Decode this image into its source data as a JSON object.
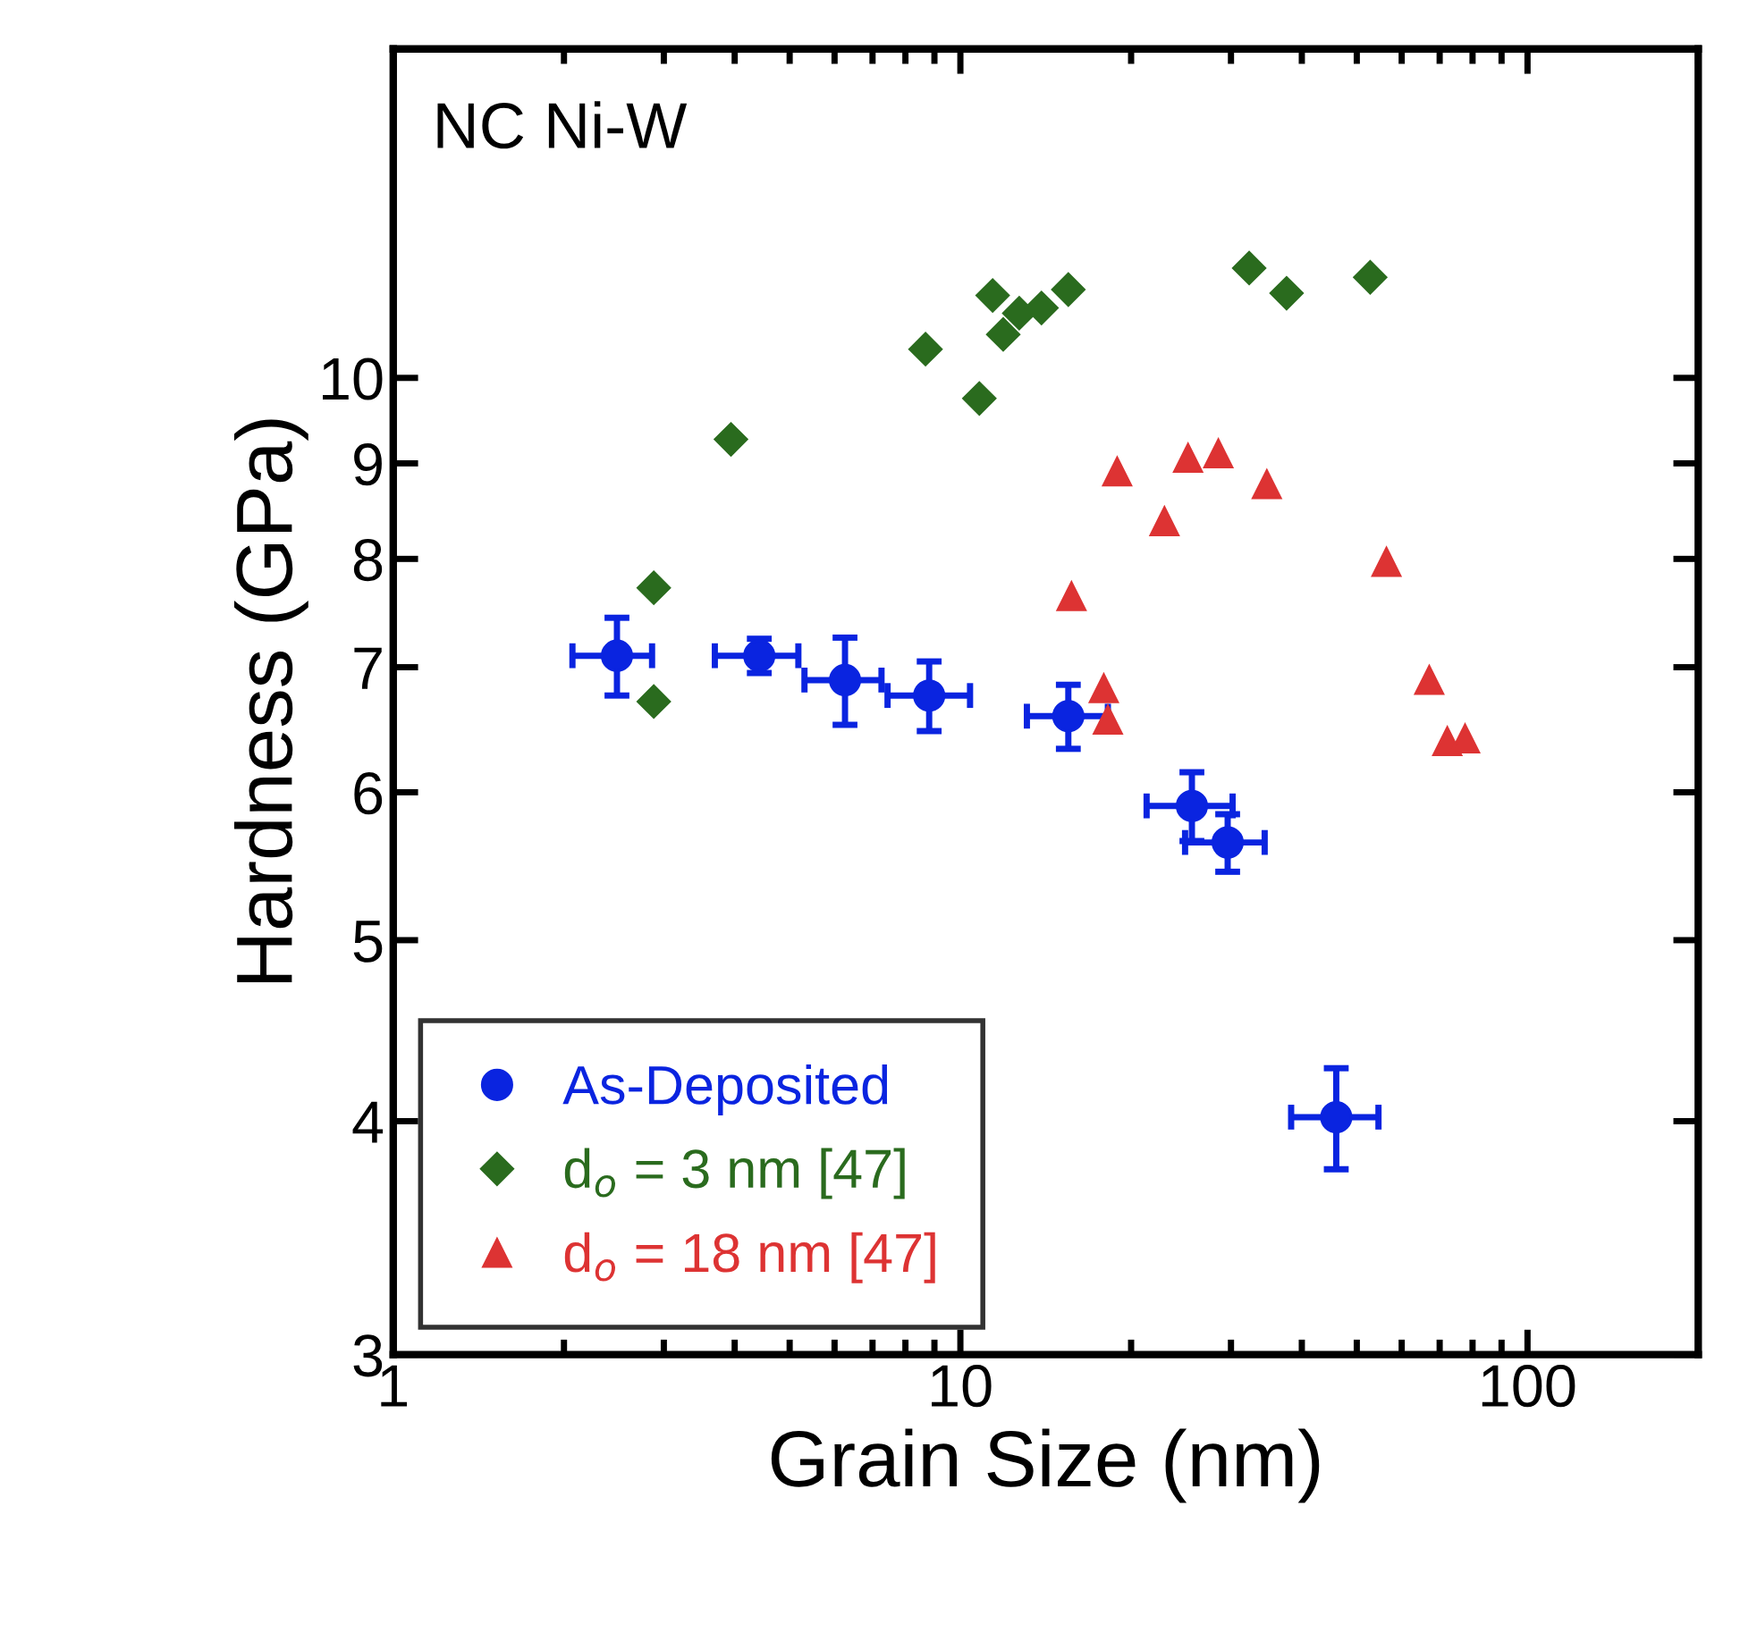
{
  "chart_data": {
    "type": "scatter",
    "xlabel": "Grain Size (nm)",
    "ylabel": "Hardness (GPa)",
    "annotations": [
      "NC Ni-W"
    ],
    "log": "xy",
    "xlim": [
      1,
      200
    ],
    "xticks": [
      1,
      10,
      100
    ],
    "ylim": [
      3,
      15
    ],
    "yticks": [
      3,
      4,
      5,
      6,
      7,
      8,
      9,
      10
    ],
    "grid": false,
    "legend": "bottom left",
    "series": [
      {
        "name": "As-Deposited",
        "color": "#0a24e0",
        "marker": "circle",
        "x": [
          2.48,
          4.42,
          6.26,
          8.81,
          15.5,
          25.6,
          29.6,
          46.0
        ],
        "values": [
          7.1,
          7.1,
          6.89,
          6.76,
          6.59,
          5.9,
          5.64,
          4.02
        ],
        "errors": [
          0.34,
          0.15,
          0.37,
          0.29,
          0.26,
          0.25,
          0.2,
          0.25
        ],
        "xerrors": [
          [
            2.07,
            2.86
          ],
          [
            3.69,
            5.18
          ],
          [
            5.31,
            7.26
          ],
          [
            7.44,
            10.4
          ],
          [
            13.1,
            18.2
          ],
          [
            21.3,
            30.2
          ],
          [
            24.9,
            34.4
          ],
          [
            38.3,
            54.6
          ]
        ]
      },
      {
        "name": "d$_{o}$ = 3 nm [47]",
        "color": "#2a6b1e",
        "marker": "diamond",
        "x": [
          3.94,
          2.88,
          2.88,
          8.68,
          10.8,
          11.4,
          11.9,
          12.7,
          13.9,
          15.5,
          32.3,
          37.6,
          52.8
        ],
        "values": [
          9.27,
          7.72,
          6.71,
          10.36,
          9.75,
          11.07,
          10.55,
          10.83,
          10.9,
          11.15,
          11.45,
          11.1,
          11.32
        ]
      },
      {
        "name": "d$_{o}$ = 18 nm [47]",
        "color": "#dd3333",
        "marker": "triangle",
        "x": [
          18.9,
          25.2,
          28.5,
          34.7,
          22.9,
          15.7,
          56.4,
          17.9,
          18.2,
          67.1,
          72.2,
          77.6
        ],
        "values": [
          8.91,
          9.06,
          9.11,
          8.77,
          8.38,
          7.64,
          7.97,
          6.82,
          6.56,
          6.89,
          6.39,
          6.41
        ]
      }
    ]
  }
}
